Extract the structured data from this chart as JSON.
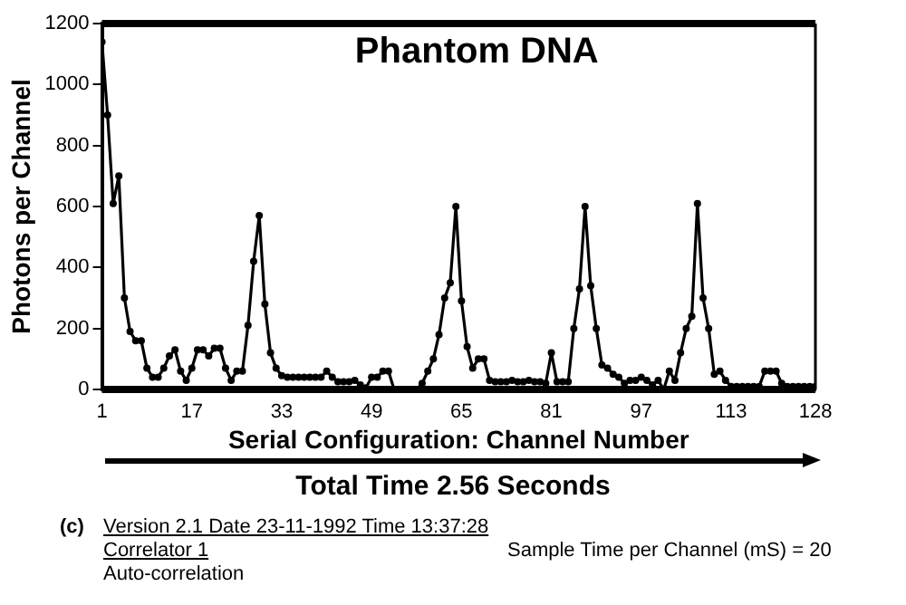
{
  "chart_data": {
    "type": "line",
    "title": "Phantom DNA",
    "xlabel": "Serial Configuration: Channel Number",
    "ylabel": "Photons per Channel",
    "x": [
      1,
      2,
      3,
      4,
      5,
      6,
      7,
      8,
      9,
      10,
      11,
      12,
      13,
      14,
      15,
      16,
      17,
      18,
      19,
      20,
      21,
      22,
      23,
      24,
      25,
      26,
      27,
      28,
      29,
      30,
      31,
      32,
      33,
      34,
      35,
      36,
      37,
      38,
      39,
      40,
      41,
      42,
      43,
      44,
      45,
      46,
      47,
      48,
      49,
      50,
      51,
      52,
      53,
      54,
      55,
      56,
      57,
      58,
      59,
      60,
      61,
      62,
      63,
      64,
      65,
      66,
      67,
      68,
      69,
      70,
      71,
      72,
      73,
      74,
      75,
      76,
      77,
      78,
      79,
      80,
      81,
      82,
      83,
      84,
      85,
      86,
      87,
      88,
      89,
      90,
      91,
      92,
      93,
      94,
      95,
      96,
      97,
      98,
      99,
      100,
      101,
      102,
      103,
      104,
      105,
      106,
      107,
      108,
      109,
      110,
      111,
      112,
      113,
      114,
      115,
      116,
      117,
      118,
      119,
      120,
      121,
      122,
      123,
      124,
      125,
      126,
      127,
      128
    ],
    "series": [
      {
        "color": "#000000",
        "values": [
          1140,
          900,
          610,
          700,
          300,
          190,
          160,
          160,
          70,
          40,
          40,
          70,
          110,
          130,
          60,
          30,
          70,
          130,
          130,
          110,
          135,
          135,
          70,
          30,
          60,
          60,
          210,
          420,
          570,
          280,
          120,
          70,
          45,
          40,
          40,
          40,
          40,
          40,
          40,
          40,
          60,
          40,
          25,
          25,
          25,
          30,
          15,
          5,
          40,
          40,
          60,
          60,
          0,
          0,
          0,
          0,
          0,
          20,
          60,
          100,
          180,
          300,
          350,
          600,
          290,
          140,
          70,
          100,
          100,
          30,
          25,
          25,
          25,
          30,
          25,
          25,
          30,
          25,
          25,
          20,
          120,
          25,
          25,
          25,
          200,
          330,
          600,
          340,
          200,
          80,
          70,
          50,
          40,
          20,
          30,
          30,
          40,
          30,
          15,
          30,
          0,
          60,
          30,
          120,
          200,
          240,
          610,
          300,
          200,
          50,
          60,
          30,
          10,
          10,
          10,
          10,
          10,
          10,
          60,
          60,
          60,
          20,
          10,
          10,
          10,
          10,
          10,
          10
        ]
      }
    ],
    "xlim": [
      1,
      128
    ],
    "xticks": [
      1,
      17,
      33,
      49,
      65,
      81,
      97,
      113,
      128
    ],
    "ylim": [
      0,
      1200
    ],
    "yticks": [
      0,
      200,
      400,
      600,
      800,
      1000,
      1200
    ],
    "grid": false,
    "legend": false,
    "marker": "circle",
    "line_style": "solid",
    "annotations": [
      "Total Time 2.56 Seconds",
      "(c)",
      "Version 2.1  Date 23-11-1992  Time 13:37:28",
      "Correlator 1",
      "Sample Time per Channel  (mS) =  20",
      "Auto-correlation"
    ]
  }
}
